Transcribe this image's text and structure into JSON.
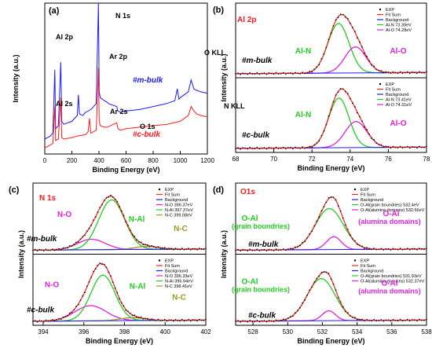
{
  "chart_data": [
    {
      "panel": "(a)",
      "type": "line",
      "xlabel": "Binding Energy (eV)",
      "ylabel": "Intensity (a.u.)",
      "xlim": [
        0,
        1200
      ],
      "xticks": [
        0,
        200,
        400,
        600,
        800,
        1000,
        1200
      ],
      "series": [
        {
          "name": "#m-bulk",
          "color": "#1a1aff",
          "x": [
            0,
            20,
            40,
            60,
            74,
            80,
            100,
            118,
            125,
            140,
            200,
            240,
            248,
            256,
            280,
            300,
            340,
            380,
            396,
            402,
            410,
            440,
            460,
            470,
            531,
            540,
            560,
            600,
            700,
            800,
            900,
            960,
            978,
            990,
            1000,
            1060,
            1080,
            1100,
            1120,
            1150,
            1200
          ],
          "y": [
            0.08,
            0.09,
            0.1,
            0.12,
            0.55,
            0.15,
            0.17,
            0.6,
            0.2,
            0.18,
            0.2,
            0.24,
            0.38,
            0.25,
            0.24,
            0.26,
            0.28,
            0.32,
            1.0,
            0.4,
            0.36,
            0.34,
            0.33,
            0.32,
            0.3,
            0.27,
            0.26,
            0.27,
            0.28,
            0.3,
            0.32,
            0.34,
            0.42,
            0.35,
            0.36,
            0.4,
            0.48,
            0.42,
            0.41,
            0.4,
            0.39
          ]
        },
        {
          "name": "#c-bulk",
          "color": "#ff1a1a",
          "x": [
            0,
            20,
            40,
            60,
            74,
            80,
            100,
            118,
            125,
            140,
            200,
            240,
            300,
            320,
            330,
            340,
            380,
            396,
            402,
            410,
            440,
            460,
            531,
            540,
            560,
            600,
            700,
            800,
            900,
            1000,
            1060,
            1080,
            1100,
            1120,
            1150,
            1200
          ],
          "y": [
            0.02,
            0.03,
            0.04,
            0.05,
            0.3,
            0.07,
            0.08,
            0.36,
            0.09,
            0.08,
            0.09,
            0.1,
            0.11,
            0.13,
            0.22,
            0.12,
            0.14,
            0.56,
            0.2,
            0.17,
            0.16,
            0.16,
            0.19,
            0.15,
            0.14,
            0.15,
            0.16,
            0.17,
            0.18,
            0.2,
            0.24,
            0.3,
            0.27,
            0.25,
            0.24,
            0.23
          ]
        }
      ],
      "annotations": [
        {
          "text": "Al 2p",
          "x": 74
        },
        {
          "text": "Ar 2p",
          "x": 248
        },
        {
          "text": "N 1s",
          "x": 396
        },
        {
          "text": "O KLL",
          "x": 978
        },
        {
          "text": "Al 2s",
          "x": 118
        },
        {
          "text": "Ar 2s",
          "x": 320
        },
        {
          "text": "O 1s",
          "x": 531
        },
        {
          "text": "N KLL",
          "x": 1080
        },
        {
          "text": "#m-bulk",
          "color": "#1a1aff"
        },
        {
          "text": "#c-bulk",
          "color": "#ff1a1a"
        }
      ]
    },
    {
      "panel": "(b)",
      "type": "line",
      "title": "Al 2p",
      "xlabel": "Binding Energy (eV)",
      "ylabel": "Intensity (a.u.)",
      "xlim": [
        68,
        78
      ],
      "xticks": [
        68,
        70,
        72,
        74,
        76,
        78
      ],
      "subplots": [
        {
          "sample": "#m-bulk",
          "legend": [
            "EXP",
            "Fit Sum",
            "Background",
            "Al-N 73.39eV",
            "Al-O 74.28eV"
          ],
          "peaks": [
            {
              "name": "Al-N",
              "center": 73.39,
              "height": 0.8,
              "fwhm": 1.3,
              "color": "#22cc22"
            },
            {
              "name": "Al-O",
              "center": 74.28,
              "height": 0.42,
              "fwhm": 1.3,
              "color": "#dd22dd"
            }
          ],
          "labels": [
            "Al-N",
            "Al-O"
          ]
        },
        {
          "sample": "#c-bulk",
          "legend": [
            "EXP",
            "Fit Sum",
            "Background",
            "Al-N 73.41eV",
            "Al-O 74.31eV"
          ],
          "peaks": [
            {
              "name": "Al-N",
              "center": 73.41,
              "height": 0.8,
              "fwhm": 1.25,
              "color": "#22cc22"
            },
            {
              "name": "Al-O",
              "center": 74.31,
              "height": 0.42,
              "fwhm": 1.35,
              "color": "#dd22dd"
            }
          ],
          "labels": [
            "Al-N",
            "Al-O"
          ]
        }
      ]
    },
    {
      "panel": "(c)",
      "type": "line",
      "title": "N 1s",
      "xlabel": "Binding Energy (eV)",
      "ylabel": "Intensity (a.u.)",
      "xlim": [
        393.5,
        402
      ],
      "xticks": [
        394,
        396,
        398,
        400,
        402
      ],
      "subplots": [
        {
          "sample": "#m-bulk",
          "legend": [
            "EXP",
            "Fit Sum",
            "Background",
            "N-O 396.37eV",
            "N-Al 397.37eV",
            "N-C 399.08eV"
          ],
          "peaks": [
            {
              "name": "N-O",
              "center": 396.37,
              "height": 0.18,
              "fwhm": 1.6,
              "color": "#dd22dd"
            },
            {
              "name": "N-Al",
              "center": 397.37,
              "height": 0.85,
              "fwhm": 1.5,
              "color": "#22cc22"
            },
            {
              "name": "N-C",
              "center": 399.08,
              "height": 0.05,
              "fwhm": 1.4,
              "color": "#999922"
            }
          ],
          "labels": [
            "N-O",
            "N-Al",
            "N-C"
          ]
        },
        {
          "sample": "#c-bulk",
          "legend": [
            "EXP",
            "Fit Sum",
            "Background",
            "N-O 396.33eV",
            "N-Al 396.94eV",
            "N-C 398.41eV"
          ],
          "peaks": [
            {
              "name": "N-O",
              "center": 396.33,
              "height": 0.26,
              "fwhm": 1.8,
              "color": "#dd22dd"
            },
            {
              "name": "N-Al",
              "center": 396.94,
              "height": 0.78,
              "fwhm": 1.4,
              "color": "#22cc22"
            },
            {
              "name": "N-C",
              "center": 398.41,
              "height": 0.05,
              "fwhm": 1.4,
              "color": "#999922"
            }
          ],
          "labels": [
            "N-O",
            "N-Al",
            "N-C"
          ]
        }
      ]
    },
    {
      "panel": "(d)",
      "type": "line",
      "title": "O1s",
      "xlabel": "Binding Energy (eV)",
      "ylabel": "Intensity (a.u.)",
      "xlim": [
        527,
        538
      ],
      "xticks": [
        528,
        530,
        532,
        534,
        536,
        538
      ],
      "subplots": [
        {
          "sample": "#m-bulk",
          "legend": [
            "EXP",
            "Fit Sum",
            "Background",
            "O-Al(grain boundries) 532.4eV",
            "O-Al(alumina domains) 532.66eV"
          ],
          "peaks": [
            {
              "name": "O-Al (grain boundries)",
              "center": 532.4,
              "height": 0.7,
              "fwhm": 1.9,
              "color": "#22cc22"
            },
            {
              "name": "O-Al (alumina domains)",
              "center": 532.66,
              "height": 0.22,
              "fwhm": 1.0,
              "color": "#dd22dd"
            }
          ],
          "labels": [
            "O-Al",
            "(grain boundries)",
            "O-Al",
            "(alumina domains)"
          ]
        },
        {
          "sample": "#c-bulk",
          "legend": [
            "EXP",
            "Fit Sum",
            "Background",
            "O-Al(grain boundries) 531.93eV",
            "O-Al(alumina domains) 532.37eV"
          ],
          "peaks": [
            {
              "name": "O-Al (grain boundries)",
              "center": 531.93,
              "height": 0.72,
              "fwhm": 1.9,
              "color": "#22cc22"
            },
            {
              "name": "O-Al (alumina domains)",
              "center": 532.37,
              "height": 0.17,
              "fwhm": 0.9,
              "color": "#dd22dd"
            }
          ],
          "labels": [
            "O-Al",
            "(grain boundries)",
            "O-Al",
            "(alumina domains)"
          ]
        }
      ]
    }
  ]
}
